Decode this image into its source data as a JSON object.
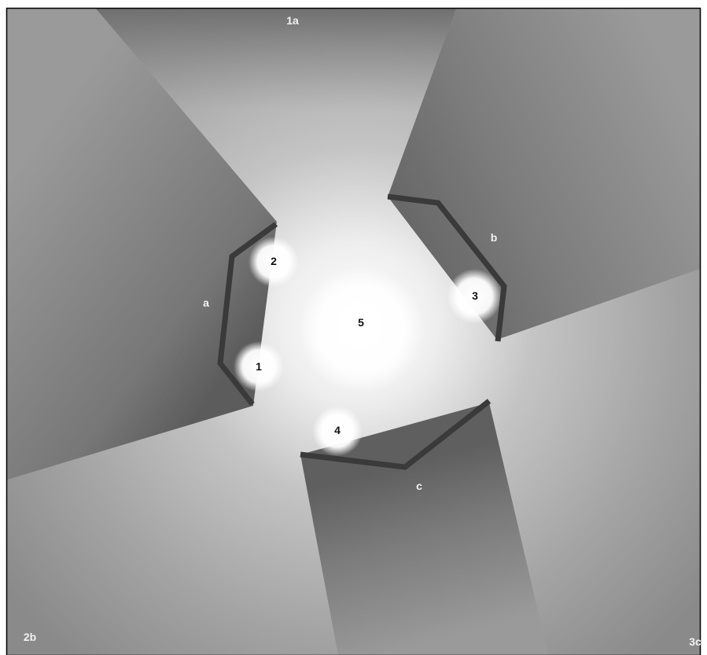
{
  "corner_labels": {
    "top": "1a",
    "bottom_left": "2b",
    "bottom_right": "3c"
  },
  "wall_labels": {
    "a": "a",
    "b": "b",
    "c": "c"
  },
  "lights": {
    "l1": "1",
    "l2": "2",
    "l3": "3",
    "l4": "4",
    "l5": "5"
  },
  "colors": {
    "wall": "#3a3a3a",
    "border": "#000000",
    "light": "#ffffff",
    "shadow_mid": "#8c8c8c",
    "shadow_dark": "#555555"
  }
}
